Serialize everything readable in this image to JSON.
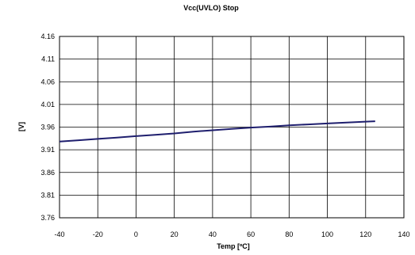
{
  "chart_data": {
    "type": "line",
    "title": "Vcc(UVLO) Stop",
    "xlabel": "Temp [ºC]",
    "ylabel": "[V]",
    "xlim": [
      -40,
      140
    ],
    "ylim": [
      3.76,
      4.16
    ],
    "xticks": [
      "-40",
      "-20",
      "0",
      "20",
      "40",
      "60",
      "80",
      "100",
      "120",
      "140"
    ],
    "yticks": [
      "3.76",
      "3.81",
      "3.86",
      "3.91",
      "3.96",
      "4.01",
      "4.06",
      "4.11",
      "4.16"
    ],
    "grid": true,
    "line_color": "#1f1f6e",
    "series": [
      {
        "x": [
          -40,
          -30,
          -20,
          -10,
          0,
          10,
          20,
          30,
          40,
          50,
          60,
          70,
          80,
          90,
          100,
          110,
          120,
          125
        ],
        "y": [
          3.928,
          3.931,
          3.934,
          3.937,
          3.94,
          3.943,
          3.946,
          3.95,
          3.953,
          3.956,
          3.959,
          3.961,
          3.964,
          3.966,
          3.968,
          3.97,
          3.972,
          3.973
        ]
      }
    ]
  }
}
